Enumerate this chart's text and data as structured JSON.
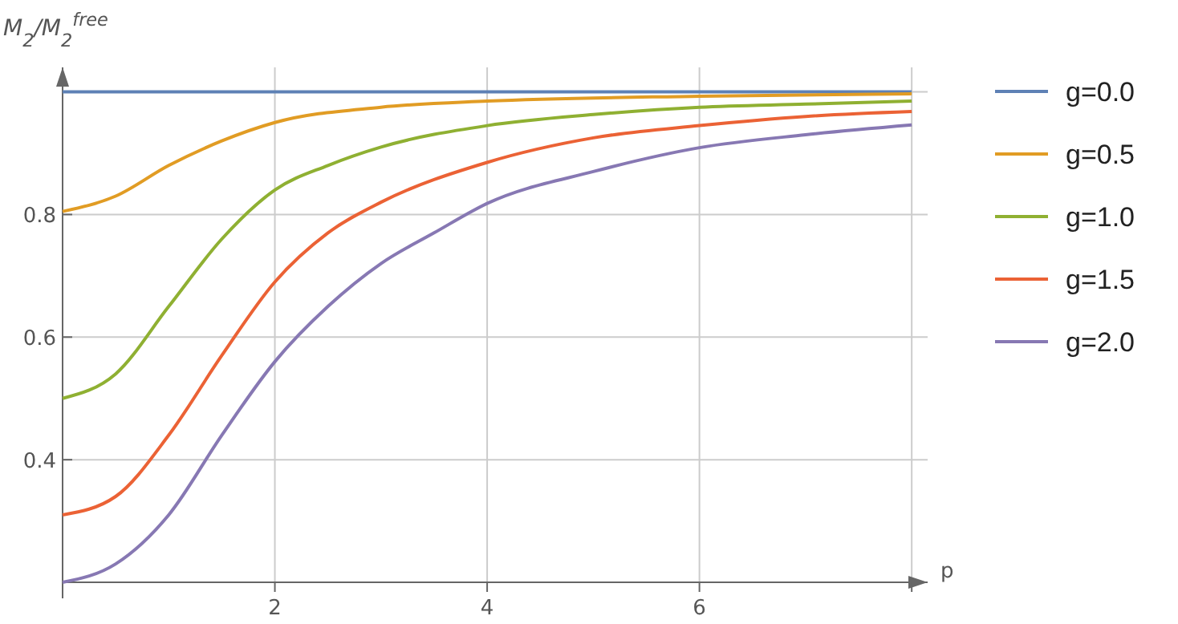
{
  "chart_data": {
    "type": "line",
    "ylabel": "M$_{2}$/M$_{2}$$^{free}$",
    "xlabel": "p",
    "xlim": [
      0,
      8.15
    ],
    "ylim": [
      0.2,
      1.04
    ],
    "xticks": [
      2,
      4,
      6,
      {
        "value": 8,
        "label": null
      }
    ],
    "yticks": [
      0.4,
      0.6,
      0.8,
      {
        "value": 1,
        "label": null
      }
    ],
    "grid": true,
    "legend": "right",
    "marker": "none",
    "line_style": "solid",
    "series": [
      {
        "name": "g=0.0",
        "color": "#5e81b5",
        "x": [
          0,
          8
        ],
        "values": [
          1,
          1
        ]
      },
      {
        "name": "g=0.5",
        "color": "#e19c24",
        "x": [
          0,
          0.5,
          1,
          1.5,
          2,
          3,
          4,
          6,
          8
        ],
        "values": [
          0.805,
          0.83,
          0.88,
          0.92,
          0.95,
          0.975,
          0.985,
          0.993,
          0.997
        ]
      },
      {
        "name": "g=1.0",
        "color": "#8fb032",
        "x": [
          0,
          0.5,
          1,
          1.5,
          2,
          2.5,
          3,
          4,
          5,
          6,
          7,
          8
        ],
        "values": [
          0.5,
          0.54,
          0.65,
          0.76,
          0.84,
          0.88,
          0.91,
          0.945,
          0.963,
          0.975,
          0.98,
          0.985
        ]
      },
      {
        "name": "g=1.5",
        "color": "#eb6235",
        "x": [
          0,
          0.5,
          1,
          1.5,
          2,
          2.5,
          3,
          4,
          5,
          6,
          7,
          8
        ],
        "values": [
          0.31,
          0.34,
          0.44,
          0.57,
          0.69,
          0.77,
          0.82,
          0.885,
          0.925,
          0.945,
          0.96,
          0.968
        ]
      },
      {
        "name": "g=2.0",
        "color": "#8778b3",
        "x": [
          0,
          0.5,
          1,
          1.5,
          2,
          2.5,
          3,
          3.5,
          4,
          5,
          6,
          7,
          8
        ],
        "values": [
          0.2,
          0.23,
          0.31,
          0.44,
          0.56,
          0.65,
          0.72,
          0.77,
          0.818,
          0.87,
          0.909,
          0.93,
          0.946
        ]
      }
    ]
  }
}
